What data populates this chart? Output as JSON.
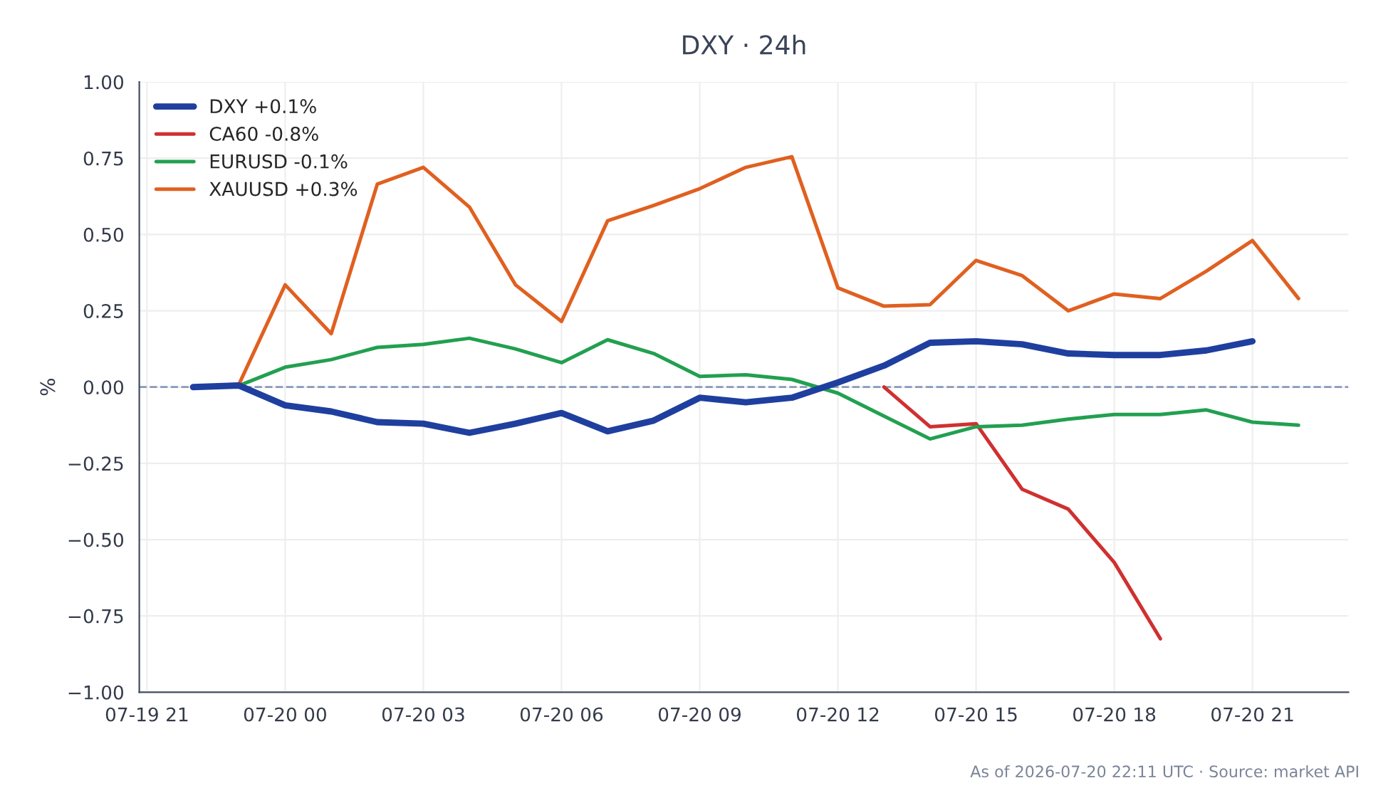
{
  "chart_data": {
    "type": "line",
    "title": "DXY · 24h",
    "ylabel": "%",
    "x": [
      "2026-07-19T22:00",
      "2026-07-19T23:00",
      "2026-07-20T00:00",
      "2026-07-20T01:00",
      "2026-07-20T02:00",
      "2026-07-20T03:00",
      "2026-07-20T04:00",
      "2026-07-20T05:00",
      "2026-07-20T06:00",
      "2026-07-20T07:00",
      "2026-07-20T08:00",
      "2026-07-20T09:00",
      "2026-07-20T10:00",
      "2026-07-20T11:00",
      "2026-07-20T12:00",
      "2026-07-20T13:00",
      "2026-07-20T14:00",
      "2026-07-20T15:00",
      "2026-07-20T16:00",
      "2026-07-20T17:00",
      "2026-07-20T18:00",
      "2026-07-20T19:00",
      "2026-07-20T20:00",
      "2026-07-20T21:00",
      "2026-07-20T22:00"
    ],
    "series": [
      {
        "name": "DXY +0.1%",
        "color": "#1f3f9f",
        "values": [
          0,
          0.005,
          -0.06,
          -0.08,
          -0.115,
          -0.12,
          -0.15,
          -0.12,
          -0.085,
          -0.145,
          -0.11,
          -0.035,
          -0.05,
          -0.035,
          0.015,
          0.07,
          0.145,
          0.15,
          0.14,
          0.11,
          0.105,
          0.105,
          0.12,
          0.15,
          null
        ]
      },
      {
        "name": "CA60 -0.8%",
        "color": "#d03030",
        "values": [
          null,
          null,
          null,
          null,
          null,
          null,
          null,
          null,
          null,
          null,
          null,
          null,
          null,
          null,
          null,
          0,
          -0.13,
          -0.12,
          -0.335,
          -0.4,
          -0.575,
          -0.825,
          null,
          null,
          null
        ]
      },
      {
        "name": "EURUSD -0.1%",
        "color": "#22a050",
        "values": [
          0,
          0.005,
          0.065,
          0.09,
          0.13,
          0.14,
          0.16,
          0.125,
          0.08,
          0.155,
          0.11,
          0.035,
          0.04,
          0.025,
          -0.02,
          -0.095,
          -0.17,
          -0.13,
          -0.125,
          -0.105,
          -0.09,
          -0.09,
          -0.075,
          -0.115,
          -0.125
        ]
      },
      {
        "name": "XAUUSD +0.3%",
        "color": "#e06020",
        "values": [
          0,
          0.01,
          0.335,
          0.175,
          0.665,
          0.72,
          0.59,
          0.335,
          0.215,
          0.545,
          0.595,
          0.65,
          0.72,
          0.755,
          0.325,
          0.265,
          0.27,
          0.415,
          0.365,
          0.25,
          0.305,
          0.29,
          0.38,
          0.48,
          0.29
        ]
      }
    ],
    "xlim": [
      "2026-07-19T20:50",
      "2026-07-20T23:05"
    ],
    "xticks": [
      {
        "value": "2026-07-19T21:00",
        "label": "07-19 21"
      },
      {
        "value": "2026-07-20T00:00",
        "label": "07-20 00"
      },
      {
        "value": "2026-07-20T03:00",
        "label": "07-20 03"
      },
      {
        "value": "2026-07-20T06:00",
        "label": "07-20 06"
      },
      {
        "value": "2026-07-20T09:00",
        "label": "07-20 09"
      },
      {
        "value": "2026-07-20T12:00",
        "label": "07-20 12"
      },
      {
        "value": "2026-07-20T15:00",
        "label": "07-20 15"
      },
      {
        "value": "2026-07-20T18:00",
        "label": "07-20 18"
      },
      {
        "value": "2026-07-20T21:00",
        "label": "07-20 21"
      }
    ],
    "ylim": [
      -1.0,
      1.0
    ],
    "yticks": [
      {
        "value": -1.0,
        "label": "−1.00"
      },
      {
        "value": -0.75,
        "label": "−0.75"
      },
      {
        "value": -0.5,
        "label": "−0.50"
      },
      {
        "value": -0.25,
        "label": "−0.25"
      },
      {
        "value": 0,
        "label": "0.00"
      },
      {
        "value": 0.25,
        "label": "0.25"
      },
      {
        "value": 0.5,
        "label": "0.50"
      },
      {
        "value": 0.75,
        "label": "0.75"
      },
      {
        "value": 1.0,
        "label": "1.00"
      }
    ],
    "ref_lines": [
      {
        "axis": "y",
        "value": 0,
        "color": "#8899bb",
        "line_style": "dashed"
      }
    ],
    "grid": true,
    "legend": "top left",
    "marker": "none",
    "line_style": "solid",
    "annotations": [
      "As of 2026-07-20 22:11 UTC · Source: market API"
    ]
  }
}
